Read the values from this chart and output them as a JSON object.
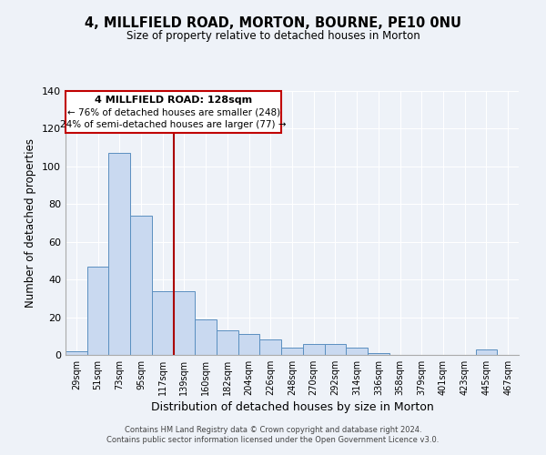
{
  "title": "4, MILLFIELD ROAD, MORTON, BOURNE, PE10 0NU",
  "subtitle": "Size of property relative to detached houses in Morton",
  "xlabel": "Distribution of detached houses by size in Morton",
  "ylabel": "Number of detached properties",
  "bar_labels": [
    "29sqm",
    "51sqm",
    "73sqm",
    "95sqm",
    "117sqm",
    "139sqm",
    "160sqm",
    "182sqm",
    "204sqm",
    "226sqm",
    "248sqm",
    "270sqm",
    "292sqm",
    "314sqm",
    "336sqm",
    "358sqm",
    "379sqm",
    "401sqm",
    "423sqm",
    "445sqm",
    "467sqm"
  ],
  "bar_values": [
    2,
    47,
    107,
    74,
    34,
    34,
    19,
    13,
    11,
    8,
    4,
    6,
    6,
    4,
    1,
    0,
    0,
    0,
    0,
    3,
    0
  ],
  "bar_color": "#c9d9f0",
  "bar_edge_color": "#5a8fc0",
  "vline_color": "#aa0000",
  "ylim": [
    0,
    140
  ],
  "yticks": [
    0,
    20,
    40,
    60,
    80,
    100,
    120,
    140
  ],
  "annotation_line1": "4 MILLFIELD ROAD: 128sqm",
  "annotation_line2": "← 76% of detached houses are smaller (248)",
  "annotation_line3": "24% of semi-detached houses are larger (77) →",
  "footer1": "Contains HM Land Registry data © Crown copyright and database right 2024.",
  "footer2": "Contains public sector information licensed under the Open Government Licence v3.0.",
  "bg_color": "#eef2f8",
  "grid_color": "#ffffff",
  "vline_x_index": 5
}
